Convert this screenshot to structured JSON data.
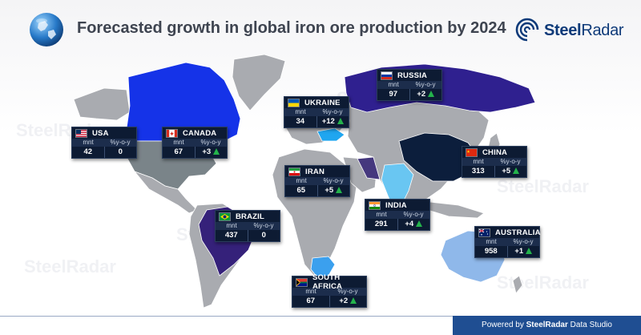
{
  "header": {
    "title": "Forecasted growth in global iron ore production by 2024",
    "brand": {
      "name_bold": "Steel",
      "name_rest": "Radar"
    }
  },
  "card_labels": {
    "unit": "mnt",
    "change": "%y-o-y"
  },
  "countries": [
    {
      "id": "usa",
      "name": "USA",
      "production_mnt": "42",
      "change_yoy": "0",
      "growth": false,
      "flag": "usa"
    },
    {
      "id": "canada",
      "name": "CANADA",
      "production_mnt": "67",
      "change_yoy": "+3",
      "growth": true,
      "flag": "canada"
    },
    {
      "id": "brazil",
      "name": "BRAZIL",
      "production_mnt": "437",
      "change_yoy": "0",
      "growth": false,
      "flag": "brazil"
    },
    {
      "id": "ukraine",
      "name": "UKRAINE",
      "production_mnt": "34",
      "change_yoy": "+12",
      "growth": true,
      "flag": "ukraine"
    },
    {
      "id": "russia",
      "name": "RUSSIA",
      "production_mnt": "97",
      "change_yoy": "+2",
      "growth": true,
      "flag": "russia"
    },
    {
      "id": "iran",
      "name": "IRAN",
      "production_mnt": "65",
      "change_yoy": "+5",
      "growth": true,
      "flag": "iran"
    },
    {
      "id": "india",
      "name": "INDIA",
      "production_mnt": "291",
      "change_yoy": "+4",
      "growth": true,
      "flag": "india"
    },
    {
      "id": "china",
      "name": "CHINA",
      "production_mnt": "313",
      "change_yoy": "+5",
      "growth": true,
      "flag": "china"
    },
    {
      "id": "australia",
      "name": "AUSTRALIA",
      "production_mnt": "958",
      "change_yoy": "+1",
      "growth": true,
      "flag": "australia"
    },
    {
      "id": "south-africa",
      "name": "SOUTH AFRICA",
      "production_mnt": "67",
      "change_yoy": "+2",
      "growth": true,
      "flag": "south-africa"
    }
  ],
  "map_colors": {
    "land": "#a9abb0",
    "canada": "#1533e8",
    "usa": "#7a8489",
    "russia": "#2f208f",
    "china": "#0c1e3c",
    "brazil": "#35217a",
    "australia": "#8fb8ea",
    "india": "#69c6f2",
    "iran": "#45387e",
    "ukraine": "#1fa6f0",
    "south_africa": "#3ba0ee"
  },
  "accent": {
    "arrow_green": "#24b34b",
    "card_bg": "#0d1b33",
    "footer_bg": "#1f4e92"
  },
  "footer": {
    "prefix": "Powered by",
    "brand": "SteelRadar",
    "suffix": "Data Studio"
  },
  "watermark": "SteelRadar"
}
